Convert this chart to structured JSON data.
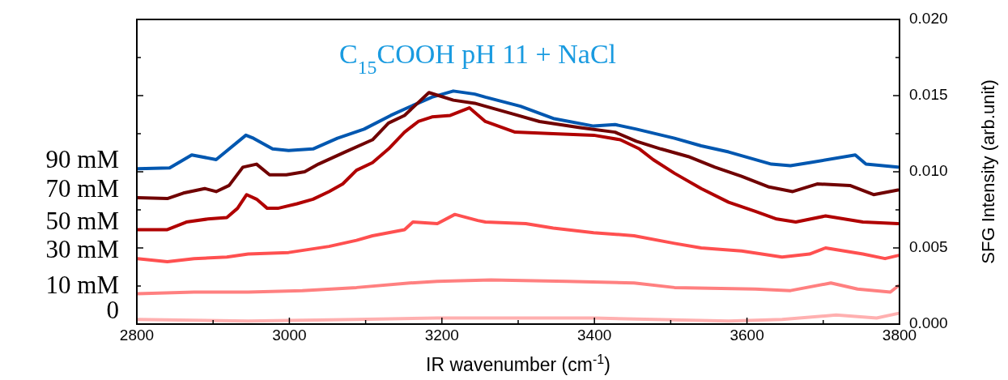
{
  "chart_data": {
    "type": "line",
    "title": "C$_{15}$COOH pH 11 + NaCl",
    "xlabel": "IR wavenumber (cm$^{-1}$)",
    "ylabel": "SFG Intensity (arb.unit)",
    "xlim": [
      2800,
      3800
    ],
    "xticks": [
      2800,
      {
        "value": 2900,
        "label": null
      },
      3000,
      {
        "value": 3100,
        "label": null
      },
      3200,
      {
        "value": 3300,
        "label": null
      },
      3400,
      {
        "value": 3500,
        "label": null
      },
      3600,
      {
        "value": 3700,
        "label": null
      },
      3800
    ],
    "ylim": [
      0,
      0.02
    ],
    "yticks": [
      {
        "value": 0,
        "label": "0.000"
      },
      {
        "value": 0.0025,
        "label": null
      },
      {
        "value": 0.005,
        "label": "0.005"
      },
      {
        "value": 0.0075,
        "label": null
      },
      {
        "value": 0.01,
        "label": "0.010"
      },
      {
        "value": 0.0125,
        "label": null
      },
      {
        "value": 0.015,
        "label": "0.015"
      },
      {
        "value": 0.0175,
        "label": null
      },
      {
        "value": 0.02,
        "label": "0.020"
      }
    ],
    "legend": false,
    "grid": false,
    "marker": "none",
    "line_style": "solid",
    "series": [
      {
        "name": "90 mM",
        "color": "#0057b0",
        "x": [
          2801,
          2843,
          2872,
          2904,
          2943,
          2953,
          2978,
          2999,
          3031,
          3063,
          3098,
          3133,
          3155,
          3187,
          3215,
          3243,
          3257,
          3303,
          3346,
          3399,
          3427,
          3455,
          3505,
          3540,
          3576,
          3632,
          3657,
          3682,
          3742,
          3756,
          3798
        ],
        "values": [
          0.0102,
          0.01025,
          0.0111,
          0.0108,
          0.0124,
          0.0122,
          0.0115,
          0.0114,
          0.0115,
          0.0122,
          0.0128,
          0.0137,
          0.0142,
          0.0149,
          0.0153,
          0.0151,
          0.0149,
          0.0143,
          0.0135,
          0.013,
          0.0131,
          0.0128,
          0.0122,
          0.0117,
          0.0113,
          0.0105,
          0.0104,
          0.0106,
          0.0111,
          0.0105,
          0.0103
        ]
      },
      {
        "name": "70 mM",
        "color": "#700000",
        "x": [
          2801,
          2840,
          2861,
          2889,
          2904,
          2921,
          2939,
          2957,
          2974,
          2996,
          3020,
          3038,
          3073,
          3109,
          3130,
          3151,
          3183,
          3215,
          3243,
          3257,
          3293,
          3328,
          3381,
          3427,
          3455,
          3487,
          3523,
          3558,
          3593,
          3629,
          3660,
          3692,
          3735,
          3766,
          3798
        ],
        "values": [
          0.0083,
          0.00824,
          0.0086,
          0.0089,
          0.0087,
          0.0091,
          0.0103,
          0.0105,
          0.0098,
          0.0098,
          0.01,
          0.0105,
          0.0113,
          0.0121,
          0.0132,
          0.0137,
          0.0152,
          0.0147,
          0.0145,
          0.0143,
          0.0138,
          0.0133,
          0.0129,
          0.0126,
          0.012,
          0.0115,
          0.011,
          0.0103,
          0.0097,
          0.009,
          0.0087,
          0.0092,
          0.0091,
          0.0085,
          0.0088
        ]
      },
      {
        "name": "50 mM",
        "color": "#b00000",
        "x": [
          2801,
          2840,
          2865,
          2893,
          2918,
          2932,
          2944,
          2957,
          2971,
          2985,
          3010,
          3031,
          3052,
          3070,
          3088,
          3109,
          3130,
          3151,
          3169,
          3187,
          3211,
          3236,
          3257,
          3296,
          3346,
          3399,
          3434,
          3459,
          3477,
          3505,
          3540,
          3576,
          3611,
          3639,
          3664,
          3703,
          3752,
          3798
        ],
        "values": [
          0.0062,
          0.0062,
          0.0067,
          0.0069,
          0.007,
          0.0076,
          0.0085,
          0.0082,
          0.0076,
          0.0076,
          0.0079,
          0.0082,
          0.0087,
          0.0092,
          0.0101,
          0.0106,
          0.0115,
          0.0126,
          0.0133,
          0.0136,
          0.0137,
          0.0142,
          0.0133,
          0.0126,
          0.0125,
          0.0124,
          0.0121,
          0.0115,
          0.0108,
          0.0099,
          0.0089,
          0.008,
          0.0074,
          0.0069,
          0.0067,
          0.0071,
          0.0067,
          0.0066
        ]
      },
      {
        "name": "30 mM",
        "color": "#ff5050",
        "x": [
          2801,
          2840,
          2875,
          2918,
          2946,
          2999,
          3052,
          3088,
          3109,
          3151,
          3162,
          3194,
          3217,
          3247,
          3257,
          3310,
          3346,
          3399,
          3452,
          3505,
          3540,
          3593,
          3646,
          3682,
          3703,
          3752,
          3781,
          3798
        ],
        "values": [
          0.0043,
          0.0041,
          0.0043,
          0.0044,
          0.0046,
          0.0047,
          0.0051,
          0.0055,
          0.0058,
          0.0062,
          0.0067,
          0.0066,
          0.0072,
          0.0068,
          0.0067,
          0.0066,
          0.0063,
          0.006,
          0.0058,
          0.0053,
          0.005,
          0.0048,
          0.0044,
          0.0046,
          0.005,
          0.0046,
          0.0043,
          0.0045
        ]
      },
      {
        "name": "10 mM",
        "color": "#ff8080",
        "x": [
          2801,
          2875,
          2946,
          3017,
          3088,
          3158,
          3194,
          3264,
          3364,
          3452,
          3505,
          3611,
          3657,
          3710,
          3745,
          3788,
          3798
        ],
        "values": [
          0.002,
          0.0021,
          0.0021,
          0.0022,
          0.0024,
          0.0027,
          0.0028,
          0.0029,
          0.0028,
          0.0027,
          0.0024,
          0.0023,
          0.0022,
          0.0027,
          0.0023,
          0.0021,
          0.0025
        ]
      },
      {
        "name": "0",
        "color": "#ffb0b0",
        "x": [
          2801,
          2946,
          3088,
          3194,
          3300,
          3399,
          3576,
          3646,
          3717,
          3770,
          3798
        ],
        "values": [
          0.0003,
          0.0002,
          0.0003,
          0.0004,
          0.0004,
          0.0004,
          0.0002,
          0.0003,
          0.0006,
          0.0004,
          0.0007
        ]
      }
    ]
  }
}
